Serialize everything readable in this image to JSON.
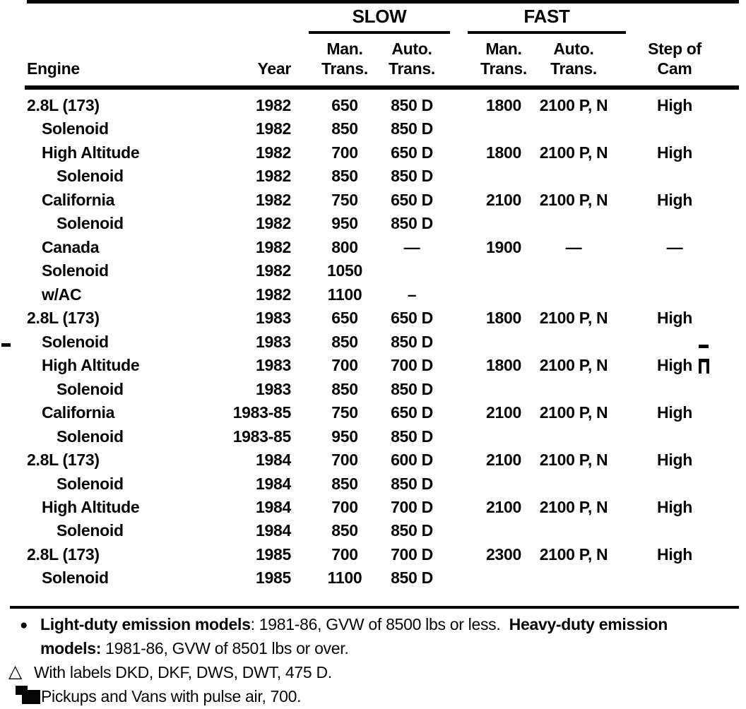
{
  "page": {
    "background": "#ffffff",
    "ink": "#050505"
  },
  "table": {
    "group_headers": {
      "slow": "SLOW",
      "fast": "FAST"
    },
    "column_headers": {
      "engine": "Engine",
      "year": "Year",
      "slow_man_l1": "Man.",
      "slow_man_l2": "Trans.",
      "slow_auto_l1": "Auto.",
      "slow_auto_l2": "Trans.",
      "fast_man_l1": "Man.",
      "fast_man_l2": "Trans.",
      "fast_auto_l1": "Auto.",
      "fast_auto_l2": "Trans.",
      "cam_l1": "Step of",
      "cam_l2": "Cam"
    },
    "rows": [
      {
        "engine": "2.8L (173)",
        "indent": 0,
        "year": "1982",
        "slow_man": "650",
        "slow_auto": "850 D",
        "fast_man": "1800",
        "fast_auto": "2100 P, N",
        "cam": "High"
      },
      {
        "engine": "Solenoid",
        "indent": 1,
        "year": "1982",
        "slow_man": "850",
        "slow_auto": "850 D",
        "fast_man": "",
        "fast_auto": "",
        "cam": ""
      },
      {
        "engine": "High Altitude",
        "indent": 1,
        "year": "1982",
        "slow_man": "700",
        "slow_auto": "650 D",
        "fast_man": "1800",
        "fast_auto": "2100 P, N",
        "cam": "High"
      },
      {
        "engine": "Solenoid",
        "indent": 2,
        "year": "1982",
        "slow_man": "850",
        "slow_auto": "850 D",
        "fast_man": "",
        "fast_auto": "",
        "cam": ""
      },
      {
        "engine": "California",
        "indent": 1,
        "year": "1982",
        "slow_man": "750",
        "slow_auto": "650 D",
        "fast_man": "2100",
        "fast_auto": "2100 P, N",
        "cam": "High"
      },
      {
        "engine": "Solenoid",
        "indent": 2,
        "year": "1982",
        "slow_man": "950",
        "slow_auto": "850 D",
        "fast_man": "",
        "fast_auto": "",
        "cam": ""
      },
      {
        "engine": "Canada",
        "indent": 1,
        "year": "1982",
        "slow_man": "800",
        "slow_auto": "—",
        "fast_man": "1900",
        "fast_auto": "—",
        "cam": "—"
      },
      {
        "engine": "Solenoid",
        "indent": 1,
        "year": "1982",
        "slow_man": "1050",
        "slow_auto": "",
        "fast_man": "",
        "fast_auto": "",
        "cam": ""
      },
      {
        "engine": "w/AC",
        "indent": 1,
        "year": "1982",
        "slow_man": "1100",
        "slow_auto": "–",
        "fast_man": "",
        "fast_auto": "",
        "cam": ""
      },
      {
        "engine": "2.8L (173)",
        "indent": 0,
        "year": "1983",
        "slow_man": "650",
        "slow_auto": "650 D",
        "fast_man": "1800",
        "fast_auto": "2100 P, N",
        "cam": "High"
      },
      {
        "engine": "Solenoid",
        "indent": 1,
        "year": "1983",
        "slow_man": "850",
        "slow_auto": "850 D",
        "fast_man": "",
        "fast_auto": "",
        "cam": ""
      },
      {
        "engine": "High Altitude",
        "indent": 1,
        "year": "1983",
        "slow_man": "700",
        "slow_auto": "700 D",
        "fast_man": "1800",
        "fast_auto": "2100 P, N",
        "cam": "High"
      },
      {
        "engine": "Solenoid",
        "indent": 2,
        "year": "1983",
        "slow_man": "850",
        "slow_auto": "850 D",
        "fast_man": "",
        "fast_auto": "",
        "cam": ""
      },
      {
        "engine": "California",
        "indent": 1,
        "year": "1983-85",
        "slow_man": "750",
        "slow_auto": "650 D",
        "fast_man": "2100",
        "fast_auto": "2100 P, N",
        "cam": "High"
      },
      {
        "engine": "Solenoid",
        "indent": 2,
        "year": "1983-85",
        "slow_man": "950",
        "slow_auto": "850 D",
        "fast_man": "",
        "fast_auto": "",
        "cam": ""
      },
      {
        "engine": "2.8L (173)",
        "indent": 0,
        "year": "1984",
        "slow_man": "700",
        "slow_auto": "600 D",
        "fast_man": "2100",
        "fast_auto": "2100 P, N",
        "cam": "High"
      },
      {
        "engine": "Solenoid",
        "indent": 2,
        "year": "1984",
        "slow_man": "850",
        "slow_auto": "850 D",
        "fast_man": "",
        "fast_auto": "",
        "cam": ""
      },
      {
        "engine": "High Altitude",
        "indent": 1,
        "year": "1984",
        "slow_man": "700",
        "slow_auto": "700 D",
        "fast_man": "2100",
        "fast_auto": "2100 P, N",
        "cam": "High"
      },
      {
        "engine": "Solenoid",
        "indent": 2,
        "year": "1984",
        "slow_man": "850",
        "slow_auto": "850 D",
        "fast_man": "",
        "fast_auto": "",
        "cam": ""
      },
      {
        "engine": "2.8L (173)",
        "indent": 0,
        "year": "1985",
        "slow_man": "700",
        "slow_auto": "700 D",
        "fast_man": "2300",
        "fast_auto": "2100 P, N",
        "cam": "High"
      },
      {
        "engine": "Solenoid",
        "indent": 1,
        "year": "1985",
        "slow_man": "1100",
        "slow_auto": "850 D",
        "fast_man": "",
        "fast_auto": "",
        "cam": ""
      }
    ]
  },
  "footnotes": {
    "note1": {
      "bullet": "●",
      "bold_lead": "Light-duty emission models",
      "normal_mid": ": 1981-86, GVW of 8500 lbs or less.  ",
      "bold_tail": "Heavy-duty emission",
      "bold_line2": "models:",
      "normal_line2": " 1981-86, GVW of 8501 lbs or over."
    },
    "note2": {
      "symbol": "△",
      "text": "With labels DKD, DKF, DWS, DWT, 475 D."
    },
    "note3": {
      "icon": "double-square-marker-icon",
      "text": "Pickups and Vans with pulse air, 700."
    }
  },
  "artifacts": {
    "left_margin_dash": "-",
    "right_margin_dash": "-",
    "right_margin_glyph": "n"
  }
}
